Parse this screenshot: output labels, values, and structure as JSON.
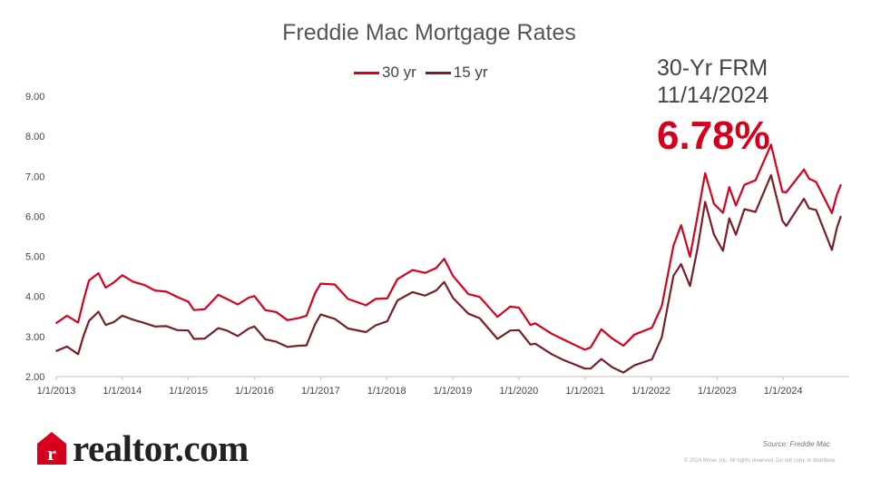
{
  "chart_data": {
    "type": "line",
    "title": "Freddie Mac Mortgage Rates",
    "ylim": [
      2.0,
      9.0
    ],
    "y_ticks": [
      "2.00",
      "3.00",
      "4.00",
      "5.00",
      "6.00",
      "7.00",
      "8.00",
      "9.00"
    ],
    "x_ticks": [
      "1/1/2013",
      "1/1/2014",
      "1/1/2015",
      "1/1/2016",
      "1/1/2017",
      "1/1/2018",
      "1/1/2019",
      "1/1/2020",
      "1/1/2021",
      "1/1/2022",
      "1/1/2023",
      "1/1/2024"
    ],
    "xlim": [
      "2013-01-01",
      "2024-12-31"
    ],
    "legend": "top-center",
    "grid": false,
    "series": [
      {
        "name": "30 yr",
        "color": "#d6001c",
        "points": [
          [
            "2013-01-03",
            3.34
          ],
          [
            "2013-03-01",
            3.52
          ],
          [
            "2013-05-02",
            3.35
          ],
          [
            "2013-06-01",
            3.91
          ],
          [
            "2013-07-01",
            4.4
          ],
          [
            "2013-08-22",
            4.58
          ],
          [
            "2013-10-01",
            4.22
          ],
          [
            "2013-11-15",
            4.35
          ],
          [
            "2014-01-01",
            4.53
          ],
          [
            "2014-03-01",
            4.37
          ],
          [
            "2014-05-01",
            4.29
          ],
          [
            "2014-07-01",
            4.15
          ],
          [
            "2014-09-01",
            4.12
          ],
          [
            "2014-11-01",
            3.99
          ],
          [
            "2015-01-01",
            3.87
          ],
          [
            "2015-02-01",
            3.66
          ],
          [
            "2015-04-01",
            3.68
          ],
          [
            "2015-06-15",
            4.04
          ],
          [
            "2015-08-01",
            3.94
          ],
          [
            "2015-10-01",
            3.8
          ],
          [
            "2015-12-01",
            3.97
          ],
          [
            "2016-01-01",
            4.01
          ],
          [
            "2016-03-01",
            3.66
          ],
          [
            "2016-05-01",
            3.61
          ],
          [
            "2016-07-01",
            3.41
          ],
          [
            "2016-09-01",
            3.46
          ],
          [
            "2016-10-15",
            3.52
          ],
          [
            "2016-12-01",
            4.08
          ],
          [
            "2017-01-01",
            4.32
          ],
          [
            "2017-03-20",
            4.3
          ],
          [
            "2017-06-01",
            3.94
          ],
          [
            "2017-09-08",
            3.78
          ],
          [
            "2017-11-01",
            3.94
          ],
          [
            "2018-01-04",
            3.95
          ],
          [
            "2018-03-01",
            4.43
          ],
          [
            "2018-05-24",
            4.66
          ],
          [
            "2018-08-01",
            4.59
          ],
          [
            "2018-10-01",
            4.71
          ],
          [
            "2018-11-15",
            4.94
          ],
          [
            "2019-01-03",
            4.51
          ],
          [
            "2019-03-28",
            4.06
          ],
          [
            "2019-05-30",
            3.99
          ],
          [
            "2019-09-05",
            3.49
          ],
          [
            "2019-11-15",
            3.75
          ],
          [
            "2020-01-02",
            3.72
          ],
          [
            "2020-03-05",
            3.29
          ],
          [
            "2020-04-01",
            3.33
          ],
          [
            "2020-07-01",
            3.07
          ],
          [
            "2020-09-01",
            2.93
          ],
          [
            "2020-12-31",
            2.67
          ],
          [
            "2021-02-01",
            2.73
          ],
          [
            "2021-04-01",
            3.18
          ],
          [
            "2021-06-01",
            2.95
          ],
          [
            "2021-08-01",
            2.77
          ],
          [
            "2021-10-01",
            3.05
          ],
          [
            "2022-01-06",
            3.22
          ],
          [
            "2022-03-01",
            3.76
          ],
          [
            "2022-05-05",
            5.27
          ],
          [
            "2022-06-16",
            5.78
          ],
          [
            "2022-08-04",
            4.99
          ],
          [
            "2022-09-15",
            6.02
          ],
          [
            "2022-10-27",
            7.08
          ],
          [
            "2022-12-15",
            6.31
          ],
          [
            "2023-02-02",
            6.09
          ],
          [
            "2023-03-09",
            6.73
          ],
          [
            "2023-04-15",
            6.27
          ],
          [
            "2023-06-01",
            6.79
          ],
          [
            "2023-08-01",
            6.9
          ],
          [
            "2023-10-26",
            7.79
          ],
          [
            "2023-12-28",
            6.61
          ],
          [
            "2024-01-18",
            6.6
          ],
          [
            "2024-04-25",
            7.17
          ],
          [
            "2024-05-23",
            6.94
          ],
          [
            "2024-07-01",
            6.86
          ],
          [
            "2024-09-26",
            6.08
          ],
          [
            "2024-10-24",
            6.54
          ],
          [
            "2024-11-14",
            6.78
          ]
        ]
      },
      {
        "name": "15 yr",
        "color": "#7a1e25",
        "points": [
          [
            "2013-01-03",
            2.64
          ],
          [
            "2013-03-01",
            2.75
          ],
          [
            "2013-05-02",
            2.56
          ],
          [
            "2013-06-01",
            3.02
          ],
          [
            "2013-07-01",
            3.39
          ],
          [
            "2013-08-22",
            3.62
          ],
          [
            "2013-10-01",
            3.29
          ],
          [
            "2013-11-15",
            3.36
          ],
          [
            "2014-01-01",
            3.52
          ],
          [
            "2014-03-01",
            3.42
          ],
          [
            "2014-05-01",
            3.34
          ],
          [
            "2014-07-01",
            3.25
          ],
          [
            "2014-09-01",
            3.26
          ],
          [
            "2014-11-01",
            3.16
          ],
          [
            "2015-01-01",
            3.15
          ],
          [
            "2015-02-01",
            2.94
          ],
          [
            "2015-04-01",
            2.95
          ],
          [
            "2015-06-15",
            3.21
          ],
          [
            "2015-08-01",
            3.15
          ],
          [
            "2015-10-01",
            3.01
          ],
          [
            "2015-12-01",
            3.2
          ],
          [
            "2016-01-01",
            3.25
          ],
          [
            "2016-03-01",
            2.93
          ],
          [
            "2016-05-01",
            2.87
          ],
          [
            "2016-07-01",
            2.74
          ],
          [
            "2016-09-01",
            2.77
          ],
          [
            "2016-10-15",
            2.78
          ],
          [
            "2016-12-01",
            3.3
          ],
          [
            "2017-01-01",
            3.55
          ],
          [
            "2017-03-20",
            3.44
          ],
          [
            "2017-06-01",
            3.2
          ],
          [
            "2017-09-08",
            3.11
          ],
          [
            "2017-11-01",
            3.28
          ],
          [
            "2018-01-04",
            3.38
          ],
          [
            "2018-03-01",
            3.9
          ],
          [
            "2018-05-24",
            4.11
          ],
          [
            "2018-08-01",
            4.02
          ],
          [
            "2018-10-01",
            4.15
          ],
          [
            "2018-11-15",
            4.36
          ],
          [
            "2019-01-03",
            3.96
          ],
          [
            "2019-03-28",
            3.57
          ],
          [
            "2019-05-30",
            3.46
          ],
          [
            "2019-09-05",
            2.94
          ],
          [
            "2019-11-15",
            3.15
          ],
          [
            "2020-01-02",
            3.16
          ],
          [
            "2020-03-05",
            2.8
          ],
          [
            "2020-04-01",
            2.82
          ],
          [
            "2020-07-01",
            2.56
          ],
          [
            "2020-09-01",
            2.42
          ],
          [
            "2020-12-31",
            2.2
          ],
          [
            "2021-02-01",
            2.2
          ],
          [
            "2021-04-01",
            2.44
          ],
          [
            "2021-06-01",
            2.23
          ],
          [
            "2021-08-01",
            2.1
          ],
          [
            "2021-10-01",
            2.28
          ],
          [
            "2022-01-06",
            2.43
          ],
          [
            "2022-03-01",
            2.98
          ],
          [
            "2022-05-05",
            4.52
          ],
          [
            "2022-06-16",
            4.81
          ],
          [
            "2022-08-04",
            4.26
          ],
          [
            "2022-09-15",
            5.21
          ],
          [
            "2022-10-27",
            6.36
          ],
          [
            "2022-12-15",
            5.54
          ],
          [
            "2023-02-02",
            5.14
          ],
          [
            "2023-03-09",
            5.95
          ],
          [
            "2023-04-15",
            5.54
          ],
          [
            "2023-06-01",
            6.18
          ],
          [
            "2023-08-01",
            6.11
          ],
          [
            "2023-10-26",
            7.03
          ],
          [
            "2023-12-28",
            5.89
          ],
          [
            "2024-01-18",
            5.76
          ],
          [
            "2024-04-25",
            6.44
          ],
          [
            "2024-05-23",
            6.2
          ],
          [
            "2024-07-01",
            6.16
          ],
          [
            "2024-09-26",
            5.16
          ],
          [
            "2024-10-24",
            5.71
          ],
          [
            "2024-11-14",
            5.99
          ]
        ]
      }
    ]
  },
  "callout": {
    "label": "30-Yr FRM",
    "date": "11/14/2024",
    "value": "6.78%",
    "value_color": "#d6001c"
  },
  "branding": {
    "logo_text": "realtor.com",
    "logo_mark": "r",
    "brand_color": "#d6001c",
    "wordmark_color": "#222222"
  },
  "source": "Source: Freddie Mac",
  "copyright": "© 2024 Move, Inc. All rights reserved. Do not copy or distribute."
}
